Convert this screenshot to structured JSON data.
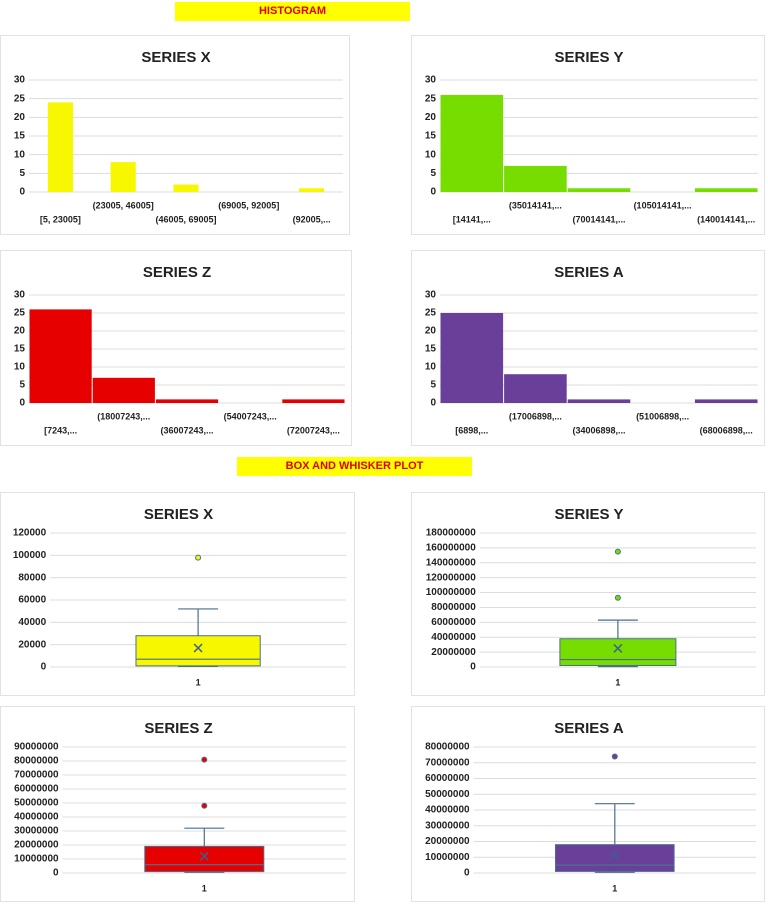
{
  "sections": [
    "HISTOGRAM",
    "BOX AND WHISKER PLOT"
  ],
  "chart_data": [
    {
      "type": "bar",
      "title": "SERIES X",
      "categories": [
        "[5, 23005]",
        "(23005, 46005]",
        "(46005, 69005]",
        "(69005, 92005]",
        "(92005,..."
      ],
      "values": [
        24,
        8,
        2,
        0,
        1
      ],
      "color": "#f7f700",
      "ylim": [
        0,
        30
      ],
      "yticks": [
        0,
        5,
        10,
        15,
        20,
        25,
        30
      ],
      "grid": true
    },
    {
      "type": "bar",
      "title": "SERIES Y",
      "categories": [
        "[14141,...",
        "(35014141,...",
        "(70014141,...",
        "(105014141,...",
        "(140014141,..."
      ],
      "values": [
        26,
        7,
        1,
        0,
        1
      ],
      "color": "#77dd00",
      "ylim": [
        0,
        30
      ],
      "yticks": [
        0,
        5,
        10,
        15,
        20,
        25,
        30
      ],
      "grid": true
    },
    {
      "type": "bar",
      "title": "SERIES Z",
      "categories": [
        "[7243,...",
        "(18007243,...",
        "(36007243,...",
        "(54007243,...",
        "(72007243,..."
      ],
      "values": [
        26,
        7,
        1,
        0,
        1
      ],
      "color": "#e60000",
      "ylim": [
        0,
        30
      ],
      "yticks": [
        0,
        5,
        10,
        15,
        20,
        25,
        30
      ],
      "grid": true
    },
    {
      "type": "bar",
      "title": "SERIES A",
      "categories": [
        "[6898,...",
        "(17006898,...",
        "(34006898,...",
        "(51006898,...",
        "(68006898,..."
      ],
      "values": [
        25,
        8,
        1,
        0,
        1
      ],
      "color": "#6a3f9a",
      "ylim": [
        0,
        30
      ],
      "yticks": [
        0,
        5,
        10,
        15,
        20,
        25,
        30
      ],
      "grid": true
    },
    {
      "type": "box",
      "title": "SERIES X",
      "categories": [
        "1"
      ],
      "boxes": [
        {
          "min": 500,
          "q1": 1000,
          "median": 7000,
          "q3": 28000,
          "max": 52000,
          "mean": 17000,
          "outliers": [
            98000
          ]
        }
      ],
      "color": "#f7f700",
      "ylim": [
        0,
        120000
      ],
      "yticks": [
        0,
        20000,
        40000,
        60000,
        80000,
        100000,
        120000
      ],
      "grid": true
    },
    {
      "type": "box",
      "title": "SERIES Y",
      "categories": [
        "1"
      ],
      "boxes": [
        {
          "min": 500000,
          "q1": 2000000,
          "median": 10000000,
          "q3": 38000000,
          "max": 63000000,
          "mean": 25000000,
          "outliers": [
            93000000,
            155000000
          ]
        }
      ],
      "color": "#77dd00",
      "ylim": [
        0,
        180000000
      ],
      "yticks": [
        0,
        20000000,
        40000000,
        60000000,
        80000000,
        100000000,
        120000000,
        140000000,
        160000000,
        180000000
      ],
      "grid": true
    },
    {
      "type": "box",
      "title": "SERIES Z",
      "categories": [
        "1"
      ],
      "boxes": [
        {
          "min": 500000,
          "q1": 1000000,
          "median": 6000000,
          "q3": 19000000,
          "max": 32000000,
          "mean": 12000000,
          "outliers": [
            48000000,
            81000000
          ]
        }
      ],
      "color": "#e60000",
      "ylim": [
        0,
        90000000
      ],
      "yticks": [
        0,
        10000000,
        20000000,
        30000000,
        40000000,
        50000000,
        60000000,
        70000000,
        80000000,
        90000000
      ],
      "grid": true
    },
    {
      "type": "box",
      "title": "SERIES A",
      "categories": [
        "1"
      ],
      "boxes": [
        {
          "min": 500000,
          "q1": 1000000,
          "median": 5000000,
          "q3": 18000000,
          "max": 44000000,
          "mean": 11000000,
          "outliers": [
            74000000
          ]
        }
      ],
      "color": "#6a3f9a",
      "ylim": [
        0,
        80000000
      ],
      "yticks": [
        0,
        10000000,
        20000000,
        30000000,
        40000000,
        50000000,
        60000000,
        70000000,
        80000000
      ],
      "grid": true
    }
  ]
}
